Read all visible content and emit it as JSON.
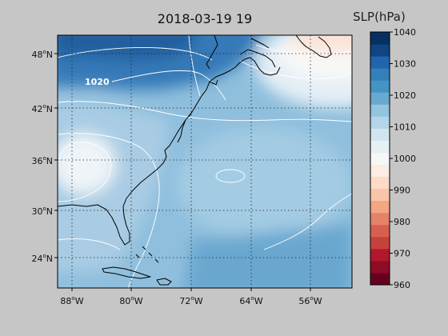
{
  "title": "2018-03-19 19",
  "colorbar": {
    "label": "SLP(hPa)",
    "ticks": [
      "1040",
      "1030",
      "1020",
      "1010",
      "1000",
      "990",
      "980",
      "970",
      "960"
    ],
    "vmin": 960,
    "vmax": 1040,
    "step": 4,
    "colors": [
      "#67001f",
      "#8e0c25",
      "#b2182b",
      "#c6413d",
      "#d6604d",
      "#e5826a",
      "#f4a582",
      "#f8c5ab",
      "#fddbc7",
      "#fbece4",
      "#f7f7f7",
      "#e5eff4",
      "#d1e5f0",
      "#b4d5e8",
      "#92c5de",
      "#6aa9cf",
      "#4393c3",
      "#3480b9",
      "#2166ac",
      "#104483",
      "#053061"
    ]
  },
  "map": {
    "lat_ticks": [
      "48",
      "42",
      "36",
      "30",
      "24"
    ],
    "lon_ticks": [
      "88",
      "80",
      "72",
      "64",
      "56"
    ],
    "lat_suffix": "N",
    "lon_suffix": "W",
    "degree_symbol": "o",
    "contour_label": "1020"
  }
}
